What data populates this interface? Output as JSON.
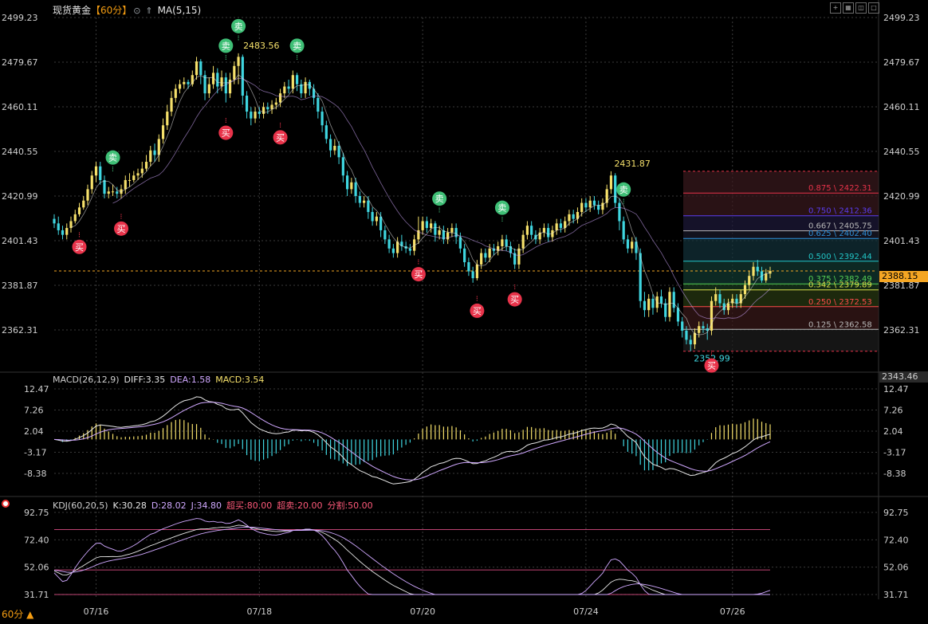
{
  "header": {
    "instrument": "现货黄金",
    "period": "【60分】",
    "ma_label": "MA(5,15)"
  },
  "toolbar": {
    "period_button": "60分 ▲"
  },
  "colors": {
    "up": "#f5e06b",
    "down": "#3fd6e0",
    "buy_badge": "#e8334a",
    "sell_badge": "#3fbf76",
    "grid": "#3a3a3a",
    "current_price_line": "#f5a623"
  },
  "chart_data": [
    {
      "type": "candlestick",
      "title": "现货黄金 60分",
      "ylim": [
        2343.46,
        2499.23
      ],
      "y_ticks": [
        "2499.23",
        "2479.67",
        "2460.11",
        "2440.55",
        "2420.99",
        "2401.43",
        "2381.87",
        "2362.31"
      ],
      "y_bottom_label": "2343.46",
      "x_ticks": [
        "07/16",
        "07/18",
        "07/20",
        "07/24",
        "07/26"
      ],
      "current_price": "2388.15",
      "annotations": {
        "high_1": "2483.56",
        "high_2": "2431.87",
        "low_1": "2352.99"
      },
      "signals": [
        {
          "type": "买",
          "index": 6
        },
        {
          "type": "卖",
          "index": 14
        },
        {
          "type": "买",
          "index": 16
        },
        {
          "type": "卖",
          "index": 41
        },
        {
          "type": "买",
          "index": 41
        },
        {
          "type": "卖",
          "index": 44
        },
        {
          "type": "买",
          "index": 54
        },
        {
          "type": "卖",
          "index": 58
        },
        {
          "type": "买",
          "index": 87
        },
        {
          "type": "卖",
          "index": 92
        },
        {
          "type": "买",
          "index": 101
        },
        {
          "type": "卖",
          "index": 107
        },
        {
          "type": "买",
          "index": 110
        },
        {
          "type": "卖",
          "index": 136
        },
        {
          "type": "买",
          "index": 157
        }
      ],
      "fibonacci": {
        "range": [
          2352.99,
          2431.87
        ],
        "levels": [
          {
            "ratio": "0.875",
            "price": "2422.31",
            "color": "#e8334a"
          },
          {
            "ratio": "0.750",
            "price": "2412.36",
            "color": "#5a3cf0"
          },
          {
            "ratio": "0.667",
            "price": "2405.75",
            "color": "#b8b8b8"
          },
          {
            "ratio": "0.625",
            "price": "2402.40",
            "color": "#2e8fd8"
          },
          {
            "ratio": "0.500",
            "price": "2392.44",
            "color": "#22c7c7"
          },
          {
            "ratio": "0.375",
            "price": "2382.49",
            "color": "#55d055"
          },
          {
            "ratio": "0.342",
            "price": "2379.89",
            "color": "#d8e04a"
          },
          {
            "ratio": "0.250",
            "price": "2372.53",
            "color": "#ff4a4a"
          },
          {
            "ratio": "0.125",
            "price": "2362.58",
            "color": "#b8b8b8"
          }
        ]
      },
      "candles": [
        [
          2411,
          2409,
          2413,
          2407
        ],
        [
          2409,
          2406,
          2412,
          2404
        ],
        [
          2406,
          2404,
          2408,
          2402
        ],
        [
          2404,
          2407,
          2409,
          2402
        ],
        [
          2407,
          2410,
          2412,
          2405
        ],
        [
          2410,
          2413,
          2415,
          2409
        ],
        [
          2413,
          2416,
          2418,
          2412
        ],
        [
          2416,
          2419,
          2421,
          2415
        ],
        [
          2419,
          2424,
          2426,
          2417
        ],
        [
          2424,
          2430,
          2432,
          2422
        ],
        [
          2430,
          2434,
          2436,
          2427
        ],
        [
          2434,
          2428,
          2436,
          2426
        ],
        [
          2428,
          2422,
          2430,
          2420
        ],
        [
          2422,
          2423,
          2425,
          2420
        ],
        [
          2423,
          2423,
          2426,
          2421
        ],
        [
          2423,
          2422,
          2425,
          2420
        ],
        [
          2422,
          2424,
          2426,
          2420
        ],
        [
          2424,
          2428,
          2430,
          2422
        ],
        [
          2428,
          2428,
          2431,
          2425
        ],
        [
          2428,
          2430,
          2432,
          2427
        ],
        [
          2430,
          2431,
          2433,
          2428
        ],
        [
          2431,
          2433,
          2436,
          2429
        ],
        [
          2433,
          2436,
          2439,
          2432
        ],
        [
          2436,
          2441,
          2443,
          2434
        ],
        [
          2441,
          2439,
          2444,
          2436
        ],
        [
          2439,
          2446,
          2448,
          2436
        ],
        [
          2446,
          2452,
          2455,
          2444
        ],
        [
          2452,
          2458,
          2461,
          2450
        ],
        [
          2458,
          2464,
          2467,
          2456
        ],
        [
          2464,
          2468,
          2470,
          2462
        ],
        [
          2468,
          2470,
          2472,
          2466
        ],
        [
          2470,
          2471,
          2473,
          2468
        ],
        [
          2471,
          2470,
          2472,
          2468
        ],
        [
          2470,
          2474,
          2476,
          2469
        ],
        [
          2474,
          2480,
          2482,
          2472
        ],
        [
          2480,
          2474,
          2481,
          2470
        ],
        [
          2474,
          2466,
          2476,
          2463
        ],
        [
          2466,
          2470,
          2473,
          2464
        ],
        [
          2470,
          2475,
          2478,
          2468
        ],
        [
          2475,
          2469,
          2477,
          2466
        ],
        [
          2469,
          2473,
          2476,
          2467
        ],
        [
          2473,
          2466,
          2475,
          2462
        ],
        [
          2466,
          2472,
          2475,
          2464
        ],
        [
          2472,
          2478,
          2480,
          2470
        ],
        [
          2478,
          2482,
          2483.56,
          2470
        ],
        [
          2482,
          2465,
          2483,
          2461
        ],
        [
          2465,
          2458,
          2467,
          2455
        ],
        [
          2458,
          2455,
          2460,
          2452
        ],
        [
          2455,
          2458,
          2460,
          2453
        ],
        [
          2458,
          2457,
          2460,
          2455
        ],
        [
          2457,
          2460,
          2462,
          2455
        ],
        [
          2460,
          2459,
          2462,
          2457
        ],
        [
          2459,
          2461,
          2463,
          2457
        ],
        [
          2461,
          2462,
          2464,
          2459
        ],
        [
          2462,
          2466,
          2468,
          2460
        ],
        [
          2466,
          2469,
          2471,
          2464
        ],
        [
          2469,
          2468,
          2472,
          2466
        ],
        [
          2468,
          2474,
          2476,
          2466
        ],
        [
          2474,
          2470,
          2475,
          2467
        ],
        [
          2470,
          2466,
          2472,
          2464
        ],
        [
          2466,
          2471,
          2473,
          2464
        ],
        [
          2471,
          2468,
          2472,
          2465
        ],
        [
          2468,
          2464,
          2470,
          2461
        ],
        [
          2464,
          2458,
          2466,
          2455
        ],
        [
          2458,
          2452,
          2460,
          2449
        ],
        [
          2452,
          2446,
          2454,
          2444
        ],
        [
          2446,
          2441,
          2448,
          2438
        ],
        [
          2441,
          2443,
          2446,
          2439
        ],
        [
          2443,
          2438,
          2445,
          2435
        ],
        [
          2438,
          2430,
          2440,
          2427
        ],
        [
          2430,
          2424,
          2432,
          2421
        ],
        [
          2424,
          2427,
          2429,
          2422
        ],
        [
          2427,
          2421,
          2429,
          2418
        ],
        [
          2421,
          2418,
          2423,
          2416
        ],
        [
          2418,
          2419,
          2421,
          2416
        ],
        [
          2419,
          2414,
          2421,
          2411
        ],
        [
          2414,
          2410,
          2416,
          2408
        ],
        [
          2410,
          2412,
          2414,
          2408
        ],
        [
          2412,
          2406,
          2414,
          2403
        ],
        [
          2406,
          2402,
          2408,
          2400
        ],
        [
          2402,
          2398,
          2404,
          2396
        ],
        [
          2398,
          2396,
          2400,
          2394
        ],
        [
          2396,
          2401,
          2403,
          2394
        ],
        [
          2401,
          2399,
          2404,
          2397
        ],
        [
          2399,
          2398,
          2401,
          2396
        ],
        [
          2398,
          2397,
          2400,
          2395
        ],
        [
          2397,
          2402,
          2404,
          2395
        ],
        [
          2402,
          2406,
          2412,
          2400
        ],
        [
          2406,
          2410,
          2412,
          2404
        ],
        [
          2410,
          2407,
          2412,
          2405
        ],
        [
          2407,
          2409,
          2411,
          2405
        ],
        [
          2409,
          2404,
          2410,
          2401
        ],
        [
          2404,
          2406,
          2408,
          2402
        ],
        [
          2406,
          2402,
          2408,
          2400
        ],
        [
          2402,
          2405,
          2407,
          2400
        ],
        [
          2405,
          2407,
          2409,
          2403
        ],
        [
          2407,
          2403,
          2409,
          2400
        ],
        [
          2403,
          2398,
          2405,
          2396
        ],
        [
          2398,
          2392,
          2400,
          2390
        ],
        [
          2392,
          2388,
          2394,
          2386
        ],
        [
          2388,
          2385,
          2390,
          2383
        ],
        [
          2385,
          2391,
          2393,
          2384
        ],
        [
          2391,
          2396,
          2398,
          2389
        ],
        [
          2396,
          2394,
          2398,
          2392
        ],
        [
          2394,
          2398,
          2400,
          2392
        ],
        [
          2398,
          2397,
          2400,
          2395
        ],
        [
          2397,
          2399,
          2401,
          2395
        ],
        [
          2399,
          2402,
          2404,
          2397
        ],
        [
          2402,
          2399,
          2404,
          2397
        ],
        [
          2399,
          2396,
          2401,
          2394
        ],
        [
          2396,
          2391,
          2398,
          2389
        ],
        [
          2391,
          2398,
          2400,
          2389
        ],
        [
          2398,
          2404,
          2406,
          2396
        ],
        [
          2404,
          2408,
          2410,
          2402
        ],
        [
          2408,
          2404,
          2410,
          2402
        ],
        [
          2404,
          2402,
          2406,
          2400
        ],
        [
          2402,
          2405,
          2407,
          2400
        ],
        [
          2405,
          2407,
          2409,
          2403
        ],
        [
          2407,
          2403,
          2409,
          2401
        ],
        [
          2403,
          2406,
          2408,
          2401
        ],
        [
          2406,
          2409,
          2411,
          2404
        ],
        [
          2409,
          2407,
          2411,
          2405
        ],
        [
          2407,
          2410,
          2412,
          2405
        ],
        [
          2410,
          2413,
          2415,
          2408
        ],
        [
          2413,
          2411,
          2415,
          2409
        ],
        [
          2411,
          2414,
          2416,
          2409
        ],
        [
          2414,
          2418,
          2420,
          2412
        ],
        [
          2418,
          2416,
          2420,
          2414
        ],
        [
          2416,
          2419,
          2421,
          2414
        ],
        [
          2419,
          2417,
          2421,
          2415
        ],
        [
          2417,
          2415,
          2419,
          2413
        ],
        [
          2415,
          2418,
          2420,
          2413
        ],
        [
          2418,
          2424,
          2426,
          2416
        ],
        [
          2424,
          2430,
          2431.87,
          2422
        ],
        [
          2430,
          2418,
          2431,
          2416
        ],
        [
          2418,
          2410,
          2420,
          2406
        ],
        [
          2410,
          2402,
          2412,
          2400
        ],
        [
          2402,
          2398,
          2404,
          2396
        ],
        [
          2398,
          2401,
          2403,
          2396
        ],
        [
          2401,
          2396,
          2403,
          2393
        ],
        [
          2396,
          2375,
          2398,
          2372
        ],
        [
          2375,
          2371,
          2379,
          2368
        ],
        [
          2371,
          2376,
          2378,
          2368
        ],
        [
          2376,
          2372,
          2378,
          2369
        ],
        [
          2372,
          2377,
          2379,
          2370
        ],
        [
          2377,
          2374,
          2380,
          2372
        ],
        [
          2374,
          2368,
          2376,
          2366
        ],
        [
          2368,
          2379,
          2381,
          2366
        ],
        [
          2379,
          2372,
          2381,
          2370
        ],
        [
          2372,
          2366,
          2374,
          2364
        ],
        [
          2366,
          2362,
          2368,
          2359
        ],
        [
          2362,
          2358,
          2364,
          2356
        ],
        [
          2358,
          2356,
          2360,
          2352.99
        ],
        [
          2356,
          2361,
          2363,
          2354
        ],
        [
          2361,
          2364,
          2366,
          2359
        ],
        [
          2364,
          2363,
          2366,
          2361
        ],
        [
          2363,
          2362,
          2365,
          2358
        ],
        [
          2362,
          2375,
          2377,
          2360
        ],
        [
          2375,
          2378,
          2381,
          2373
        ],
        [
          2378,
          2374,
          2380,
          2372
        ],
        [
          2374,
          2371,
          2376,
          2369
        ],
        [
          2371,
          2374,
          2376,
          2369
        ],
        [
          2374,
          2376,
          2378,
          2372
        ],
        [
          2376,
          2374,
          2378,
          2372
        ],
        [
          2374,
          2378,
          2380,
          2372
        ],
        [
          2378,
          2382,
          2384,
          2376
        ],
        [
          2382,
          2386,
          2388,
          2380
        ],
        [
          2386,
          2390,
          2392,
          2384
        ],
        [
          2390,
          2388,
          2393,
          2386
        ],
        [
          2388,
          2384,
          2390,
          2383
        ],
        [
          2384,
          2387,
          2389,
          2383
        ],
        [
          2387,
          2388.15,
          2390,
          2385
        ]
      ]
    },
    {
      "type": "line",
      "title": "MACD(26,12,9)",
      "values_label": {
        "diff": "DIFF:3.35",
        "dea": "DEA:1.58",
        "macd": "MACD:3.54"
      },
      "ylim": [
        -8.38,
        12.47
      ],
      "y_ticks": [
        "12.47",
        "7.26",
        "2.04",
        "-3.17",
        "-8.38"
      ]
    },
    {
      "type": "line",
      "title": "KDJ(60,20,5)",
      "values_label": {
        "k": "K:30.28",
        "d": "D:28.02",
        "j": "J:34.80",
        "overbought": "超买:80.00",
        "oversold": "超卖:20.00",
        "split": "分割:50.00"
      },
      "ylim": [
        31.71,
        92.75
      ],
      "y_ticks": [
        "92.75",
        "72.40",
        "52.06",
        "31.71"
      ],
      "levels": [
        80,
        50,
        20
      ]
    }
  ]
}
